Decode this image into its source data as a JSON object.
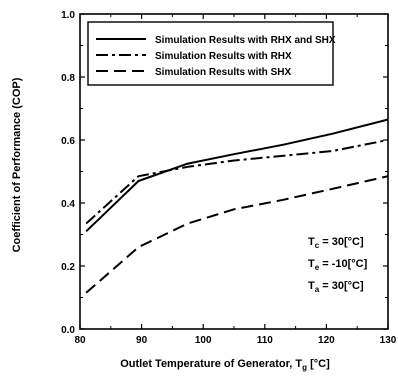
{
  "chart_data": {
    "type": "line",
    "xlabel": "Outlet Temperature of Generator, T",
    "xlabel_subscript": "g",
    "xlabel_unit": " [°C]",
    "ylabel": "Coefficient of Performance (COP)",
    "xlim": [
      80,
      130
    ],
    "ylim": [
      0.0,
      1.0
    ],
    "x_ticks": [
      80,
      90,
      100,
      110,
      120,
      130
    ],
    "y_ticks": [
      0.0,
      0.2,
      0.4,
      0.6,
      0.8,
      1.0
    ],
    "x_tick_labels": [
      "80",
      "90",
      "100",
      "110",
      "120",
      "130"
    ],
    "y_tick_labels": [
      "0.0",
      "0.2",
      "0.4",
      "0.6",
      "0.8",
      "1.0"
    ],
    "grid": false,
    "legend_position": "top-left",
    "series": [
      {
        "name": "Simulation Results with RHX and SHX",
        "dash": "solid",
        "x": [
          81,
          89.5,
          97.5,
          105,
          113,
          121,
          130
        ],
        "y": [
          0.31,
          0.47,
          0.525,
          0.555,
          0.585,
          0.62,
          0.665
        ]
      },
      {
        "name": "Simulation Results with RHX",
        "dash": "dash-dot",
        "x": [
          81,
          89.5,
          97.5,
          105,
          113,
          121,
          130
        ],
        "y": [
          0.335,
          0.485,
          0.515,
          0.535,
          0.55,
          0.565,
          0.6
        ]
      },
      {
        "name": "Simulation Results with SHX",
        "dash": "dashed",
        "x": [
          81,
          89.5,
          97.5,
          105,
          113,
          121,
          130
        ],
        "y": [
          0.115,
          0.26,
          0.335,
          0.38,
          0.41,
          0.445,
          0.485
        ]
      }
    ],
    "annotations": [
      {
        "symbol": "T",
        "subscript": "c",
        "text": " =  30[°C]"
      },
      {
        "symbol": "T",
        "subscript": "e",
        "text": " = -10[°C]"
      },
      {
        "symbol": "T",
        "subscript": "a",
        "text": " =  30[°C]"
      }
    ]
  }
}
